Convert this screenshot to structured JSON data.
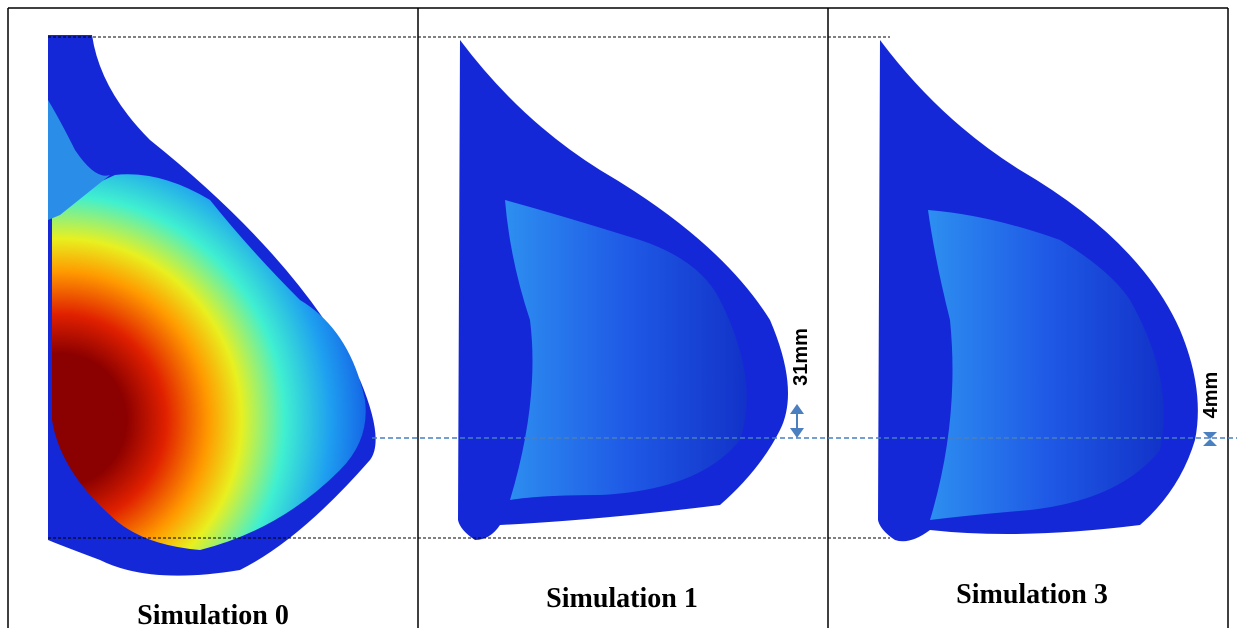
{
  "panels": [
    {
      "caption": "Simulation 0"
    },
    {
      "caption": "Simulation 1"
    },
    {
      "caption": "Simulation 3"
    }
  ],
  "annotations": [
    {
      "text": "31mm"
    },
    {
      "text": "4mm"
    }
  ]
}
